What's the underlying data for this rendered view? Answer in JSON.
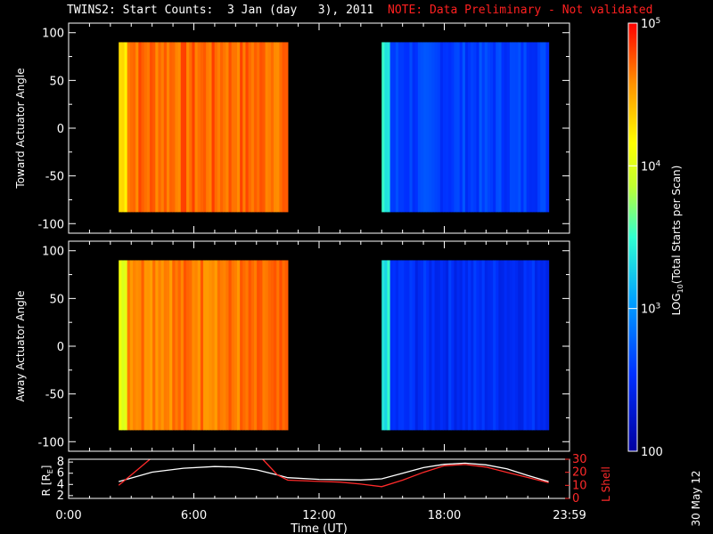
{
  "title": "TWINS2: Start Counts:  3 Jan (day   3), 2011",
  "note": "NOTE: Data Preliminary - Not validated",
  "side_date": "30 May 12",
  "colors": {
    "background": "#000000",
    "note": "#ff2020",
    "trace_r": "#ffffff",
    "trace_l": "#ff2a2a"
  },
  "chart_data": [
    {
      "type": "heatmap",
      "name": "toward",
      "ylabel": "Toward Actuator Angle",
      "ylim": [
        -110,
        110
      ],
      "yticks": [
        100,
        50,
        0,
        -50,
        -100
      ],
      "xlim": [
        0,
        24
      ],
      "angle_range": [
        -88,
        90
      ],
      "blocks": [
        {
          "t0": 2.4,
          "t1": 10.5,
          "level": 4.7,
          "level_start": 4.3
        },
        {
          "t0": 15.0,
          "t1": 23.0,
          "level": 2.6,
          "level_start": 3.4
        }
      ]
    },
    {
      "type": "heatmap",
      "name": "away",
      "ylabel": "Away Actuator Angle",
      "ylim": [
        -110,
        110
      ],
      "yticks": [
        100,
        50,
        0,
        -50,
        -100
      ],
      "xlim": [
        0,
        24
      ],
      "angle_range": [
        -88,
        90
      ],
      "blocks": [
        {
          "t0": 2.4,
          "t1": 10.5,
          "level": 4.65,
          "level_start": 4.1
        },
        {
          "t0": 15.0,
          "t1": 23.0,
          "level": 2.5,
          "level_start": 3.4
        }
      ]
    },
    {
      "type": "line",
      "name": "orbit",
      "ylabel_left": "R [R",
      "ylabel_left_sub": "E",
      "ylabel_left_end": "]",
      "ylabel_right": "L Shell",
      "xlabel": "Time (UT)",
      "xticks": [
        "0:00",
        "6:00",
        "12:00",
        "18:00",
        "23:59"
      ],
      "xtick_hours": [
        0,
        6,
        12,
        18,
        24
      ],
      "ylim_left": [
        1.5,
        8.5
      ],
      "yticks_left": [
        "8",
        "6",
        "4",
        "2"
      ],
      "yticks_left_vals": [
        8,
        6,
        4,
        2
      ],
      "ylim_right": [
        0,
        30
      ],
      "yticks_right": [
        "30",
        "20",
        "10",
        "0"
      ],
      "yticks_right_vals": [
        30,
        20,
        10,
        0
      ],
      "series": [
        {
          "color": "#ffffff",
          "x": [
            2.4,
            4,
            5.5,
            7,
            8,
            9,
            10,
            10.5,
            12,
            14,
            15,
            16,
            17,
            18,
            19,
            20,
            21,
            22,
            23
          ],
          "y": [
            4.5,
            6.2,
            6.9,
            7.2,
            7.1,
            6.6,
            5.7,
            5.2,
            4.9,
            4.8,
            5.0,
            6.0,
            7.0,
            7.6,
            7.8,
            7.5,
            6.8,
            5.6,
            4.5
          ]
        },
        {
          "color": "#ff2a2a",
          "x": [
            2.4,
            3,
            3.9
          ],
          "y": [
            10,
            18,
            30
          ]
        },
        {
          "color": "#ff2a2a",
          "x": [
            9.3,
            10,
            10.5,
            12,
            13,
            14,
            15,
            16,
            17,
            18,
            19,
            20,
            21,
            22,
            23
          ],
          "y": [
            30,
            18,
            14,
            13,
            12.5,
            11,
            9,
            14,
            20,
            25,
            26,
            24,
            20,
            16,
            12
          ]
        }
      ]
    }
  ],
  "colorbar": {
    "label": "LOG",
    "label_sub": "10",
    "label_rest": "(Total Starts per Scan)",
    "tick_labels": [
      "10",
      "10",
      "10",
      "100"
    ],
    "tick_exps": [
      "5",
      "4",
      "3",
      ""
    ],
    "tick_levels": [
      5,
      4,
      3,
      2
    ],
    "range": [
      2,
      5
    ]
  }
}
